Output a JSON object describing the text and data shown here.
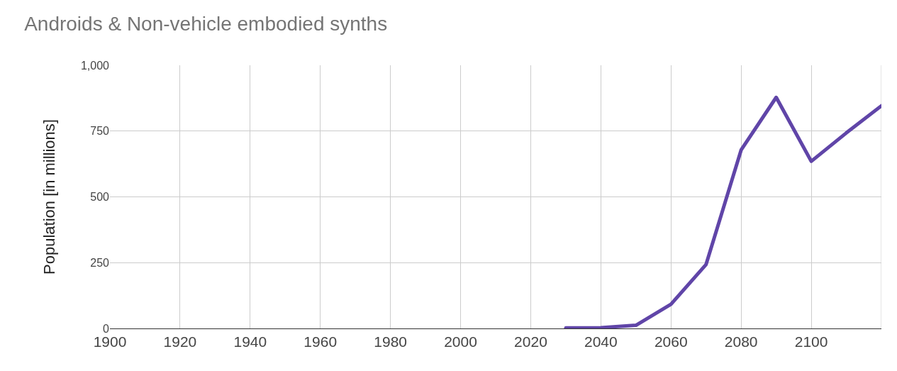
{
  "chart_data": {
    "type": "line",
    "title": "Androids & Non-vehicle embodied synths",
    "ylabel": "Population [in millions]",
    "x": [
      2030,
      2040,
      2050,
      2060,
      2070,
      2080,
      2090,
      2100,
      2110,
      2120
    ],
    "series": [
      {
        "color": "#6045a8",
        "values": [
          2,
          3,
          12,
          92,
          243,
          678,
          878,
          635,
          743,
          846
        ]
      }
    ],
    "xlim": [
      1900,
      2120
    ],
    "xticks": [
      1900,
      1920,
      1940,
      1960,
      1980,
      2000,
      2020,
      2040,
      2060,
      2080,
      2100
    ],
    "ylim": [
      0,
      1000
    ],
    "yticks": [
      0,
      250,
      500,
      750,
      {
        "value": 1000,
        "label": "1,000"
      }
    ],
    "grid": true,
    "marker": "none",
    "line_style": "solid"
  }
}
